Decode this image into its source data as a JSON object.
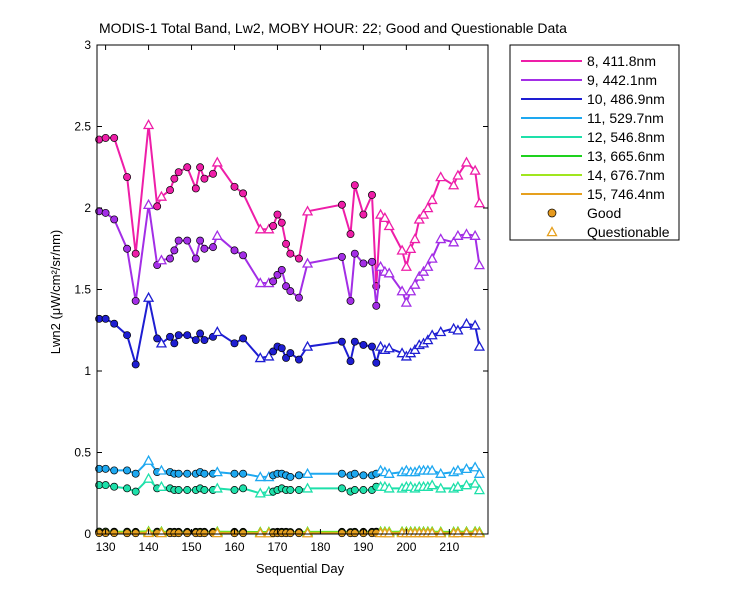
{
  "chart_data": {
    "type": "line",
    "title": "MODIS-1 Total Band, Lw2, MOBY HOUR: 22;  Good and Questionable Data",
    "xlabel": "Sequential Day",
    "ylabel": "Lwn2 (μW/cm²/sr/nm)",
    "xlim": [
      128,
      219
    ],
    "ylim": [
      0,
      3
    ],
    "xticks": [
      130,
      140,
      150,
      160,
      170,
      180,
      190,
      200,
      210
    ],
    "yticks": [
      0,
      0.5,
      1,
      1.5,
      2,
      2.5,
      3
    ],
    "ytick_labels": [
      "0",
      "0.5",
      "1",
      "1.5",
      "2",
      "2.5",
      "3"
    ],
    "grid": false,
    "legend_position": "outside-top-right",
    "x": [
      128.5,
      130,
      132,
      135,
      137,
      140,
      142,
      143,
      145,
      146,
      147,
      149,
      151,
      152,
      153,
      155,
      156,
      160,
      162,
      166,
      168,
      169,
      170,
      171,
      172,
      173,
      175,
      177,
      185,
      187,
      188,
      190,
      192,
      193,
      194,
      195,
      196,
      199,
      200,
      201,
      202,
      203,
      204,
      205,
      206,
      208,
      211,
      212,
      214,
      216,
      217
    ],
    "quality": [
      "good",
      "good",
      "good",
      "good",
      "good",
      "questionable",
      "good",
      "questionable",
      "good",
      "good",
      "good",
      "good",
      "good",
      "good",
      "good",
      "good",
      "questionable",
      "good",
      "good",
      "questionable",
      "questionable",
      "good",
      "good",
      "good",
      "good",
      "good",
      "good",
      "questionable",
      "good",
      "good",
      "good",
      "good",
      "good",
      "good",
      "questionable",
      "questionable",
      "questionable",
      "questionable",
      "questionable",
      "questionable",
      "questionable",
      "questionable",
      "questionable",
      "questionable",
      "questionable",
      "questionable",
      "questionable",
      "questionable",
      "questionable",
      "questionable",
      "questionable"
    ],
    "series": [
      {
        "name": "8, 411.8nm",
        "color": "#ee1ea8",
        "values": [
          2.42,
          2.43,
          2.43,
          2.19,
          1.72,
          2.51,
          2.01,
          2.07,
          2.11,
          2.18,
          2.22,
          2.25,
          2.12,
          2.25,
          2.18,
          2.21,
          2.28,
          2.13,
          2.09,
          1.87,
          1.87,
          1.89,
          1.96,
          1.91,
          1.78,
          1.72,
          1.69,
          1.98,
          2.02,
          1.84,
          2.14,
          1.96,
          2.08,
          1.52,
          1.96,
          1.94,
          1.89,
          1.74,
          1.64,
          1.75,
          1.81,
          1.93,
          1.96,
          2.0,
          2.05,
          2.19,
          2.14,
          2.2,
          2.28,
          2.23,
          2.03
        ]
      },
      {
        "name": "9, 442.1nm",
        "color": "#a32ee6",
        "values": [
          1.98,
          1.97,
          1.93,
          1.75,
          1.43,
          2.02,
          1.65,
          1.68,
          1.69,
          1.74,
          1.8,
          1.8,
          1.69,
          1.8,
          1.75,
          1.76,
          1.83,
          1.74,
          1.71,
          1.54,
          1.54,
          1.55,
          1.59,
          1.62,
          1.52,
          1.49,
          1.45,
          1.66,
          1.7,
          1.43,
          1.72,
          1.66,
          1.67,
          1.4,
          1.64,
          1.61,
          1.6,
          1.49,
          1.42,
          1.49,
          1.53,
          1.58,
          1.61,
          1.64,
          1.69,
          1.81,
          1.79,
          1.83,
          1.84,
          1.83,
          1.65
        ]
      },
      {
        "name": "10, 486.9nm",
        "color": "#1e1ed2",
        "values": [
          1.32,
          1.32,
          1.29,
          1.22,
          1.04,
          1.45,
          1.2,
          1.17,
          1.21,
          1.17,
          1.22,
          1.22,
          1.19,
          1.23,
          1.19,
          1.21,
          1.24,
          1.17,
          1.2,
          1.08,
          1.09,
          1.12,
          1.15,
          1.14,
          1.08,
          1.11,
          1.07,
          1.15,
          1.18,
          1.06,
          1.18,
          1.16,
          1.15,
          1.05,
          1.15,
          1.13,
          1.14,
          1.11,
          1.09,
          1.11,
          1.13,
          1.16,
          1.17,
          1.19,
          1.22,
          1.24,
          1.26,
          1.25,
          1.29,
          1.28,
          1.15
        ]
      },
      {
        "name": "11, 529.7nm",
        "color": "#1ea8f0",
        "values": [
          0.4,
          0.4,
          0.39,
          0.39,
          0.37,
          0.45,
          0.38,
          0.39,
          0.38,
          0.37,
          0.37,
          0.37,
          0.37,
          0.38,
          0.37,
          0.37,
          0.38,
          0.37,
          0.37,
          0.35,
          0.35,
          0.36,
          0.37,
          0.37,
          0.36,
          0.35,
          0.36,
          0.37,
          0.37,
          0.36,
          0.37,
          0.36,
          0.36,
          0.37,
          0.39,
          0.38,
          0.37,
          0.38,
          0.39,
          0.38,
          0.38,
          0.39,
          0.39,
          0.39,
          0.39,
          0.37,
          0.38,
          0.39,
          0.4,
          0.41,
          0.37
        ]
      },
      {
        "name": "12, 546.8nm",
        "color": "#1ee0aa",
        "values": [
          0.3,
          0.3,
          0.29,
          0.28,
          0.26,
          0.34,
          0.28,
          0.29,
          0.28,
          0.27,
          0.27,
          0.27,
          0.27,
          0.28,
          0.27,
          0.27,
          0.28,
          0.27,
          0.28,
          0.25,
          0.26,
          0.26,
          0.27,
          0.28,
          0.27,
          0.27,
          0.27,
          0.28,
          0.28,
          0.26,
          0.27,
          0.27,
          0.27,
          0.29,
          0.29,
          0.29,
          0.28,
          0.28,
          0.29,
          0.29,
          0.28,
          0.29,
          0.29,
          0.29,
          0.3,
          0.28,
          0.28,
          0.29,
          0.3,
          0.31,
          0.27
        ]
      },
      {
        "name": "13, 665.6nm",
        "color": "#1ed21e",
        "values": [
          0.015,
          0.015,
          0.014,
          0.014,
          0.013,
          0.016,
          0.014,
          0.014,
          0.013,
          0.013,
          0.013,
          0.013,
          0.013,
          0.013,
          0.013,
          0.013,
          0.014,
          0.013,
          0.013,
          0.012,
          0.012,
          0.012,
          0.013,
          0.013,
          0.013,
          0.012,
          0.012,
          0.013,
          0.013,
          0.012,
          0.013,
          0.013,
          0.013,
          0.014,
          0.014,
          0.014,
          0.013,
          0.014,
          0.014,
          0.014,
          0.014,
          0.014,
          0.014,
          0.014,
          0.014,
          0.013,
          0.013,
          0.014,
          0.014,
          0.015,
          0.013
        ]
      },
      {
        "name": "14, 676.7nm",
        "color": "#a0e61e",
        "values": [
          0.012,
          0.012,
          0.011,
          0.011,
          0.01,
          0.013,
          0.011,
          0.011,
          0.011,
          0.01,
          0.01,
          0.01,
          0.01,
          0.011,
          0.01,
          0.01,
          0.011,
          0.01,
          0.01,
          0.009,
          0.009,
          0.01,
          0.01,
          0.01,
          0.01,
          0.01,
          0.01,
          0.01,
          0.01,
          0.009,
          0.01,
          0.01,
          0.01,
          0.011,
          0.011,
          0.011,
          0.01,
          0.011,
          0.011,
          0.011,
          0.011,
          0.011,
          0.011,
          0.011,
          0.011,
          0.01,
          0.01,
          0.011,
          0.011,
          0.012,
          0.01
        ]
      },
      {
        "name": "15, 746.4nm",
        "color": "#e6a01e",
        "values": [
          0.006,
          0.006,
          0.006,
          0.005,
          0.005,
          0.007,
          0.005,
          0.006,
          0.005,
          0.005,
          0.005,
          0.005,
          0.005,
          0.005,
          0.005,
          0.005,
          0.006,
          0.005,
          0.005,
          0.005,
          0.005,
          0.005,
          0.005,
          0.005,
          0.005,
          0.005,
          0.005,
          0.005,
          0.005,
          0.005,
          0.005,
          0.005,
          0.005,
          0.006,
          0.006,
          0.006,
          0.005,
          0.006,
          0.006,
          0.006,
          0.006,
          0.006,
          0.006,
          0.006,
          0.006,
          0.005,
          0.005,
          0.006,
          0.006,
          0.006,
          0.005
        ]
      }
    ],
    "marker_legend": [
      {
        "label": "Good",
        "marker": "circle",
        "color": "#e69a1e"
      },
      {
        "label": "Questionable",
        "marker": "triangle",
        "color": "#e6a01e"
      }
    ]
  }
}
